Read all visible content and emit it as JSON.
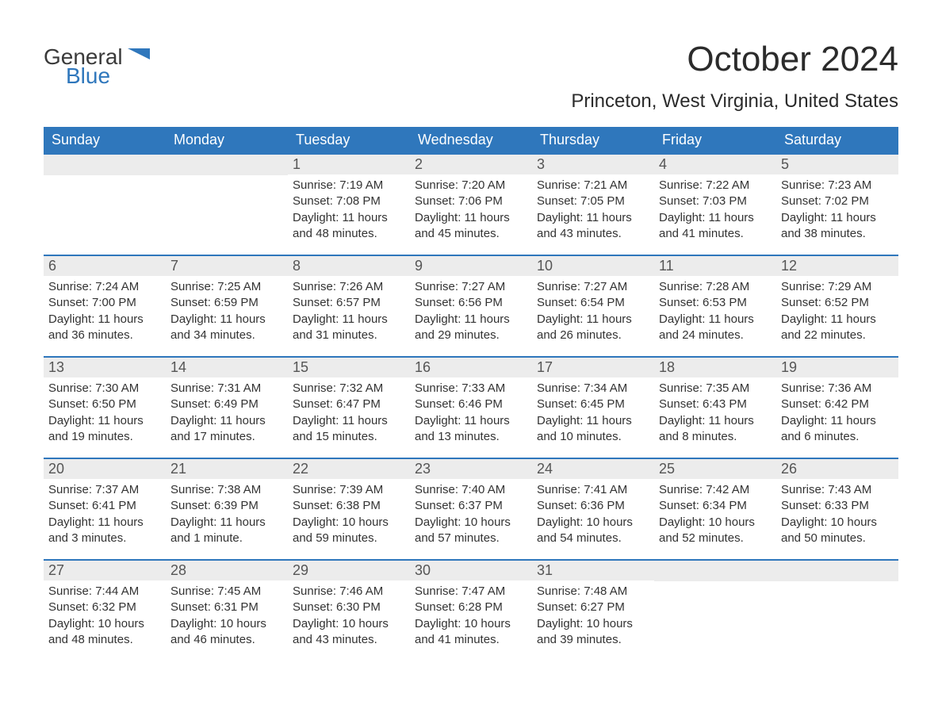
{
  "logo": {
    "word1": "General",
    "word2": "Blue",
    "accent_color": "#2f77bc"
  },
  "title": "October 2024",
  "location": "Princeton, West Virginia, United States",
  "colors": {
    "header_bg": "#2f77bc",
    "header_text": "#ffffff",
    "daynum_bg": "#ececec",
    "row_border": "#2f77bc",
    "body_text": "#333333",
    "page_bg": "#ffffff"
  },
  "weekdays": [
    "Sunday",
    "Monday",
    "Tuesday",
    "Wednesday",
    "Thursday",
    "Friday",
    "Saturday"
  ],
  "first_weekday_index": 2,
  "days": [
    {
      "n": 1,
      "sunrise": "7:19 AM",
      "sunset": "7:08 PM",
      "daylight": "11 hours and 48 minutes."
    },
    {
      "n": 2,
      "sunrise": "7:20 AM",
      "sunset": "7:06 PM",
      "daylight": "11 hours and 45 minutes."
    },
    {
      "n": 3,
      "sunrise": "7:21 AM",
      "sunset": "7:05 PM",
      "daylight": "11 hours and 43 minutes."
    },
    {
      "n": 4,
      "sunrise": "7:22 AM",
      "sunset": "7:03 PM",
      "daylight": "11 hours and 41 minutes."
    },
    {
      "n": 5,
      "sunrise": "7:23 AM",
      "sunset": "7:02 PM",
      "daylight": "11 hours and 38 minutes."
    },
    {
      "n": 6,
      "sunrise": "7:24 AM",
      "sunset": "7:00 PM",
      "daylight": "11 hours and 36 minutes."
    },
    {
      "n": 7,
      "sunrise": "7:25 AM",
      "sunset": "6:59 PM",
      "daylight": "11 hours and 34 minutes."
    },
    {
      "n": 8,
      "sunrise": "7:26 AM",
      "sunset": "6:57 PM",
      "daylight": "11 hours and 31 minutes."
    },
    {
      "n": 9,
      "sunrise": "7:27 AM",
      "sunset": "6:56 PM",
      "daylight": "11 hours and 29 minutes."
    },
    {
      "n": 10,
      "sunrise": "7:27 AM",
      "sunset": "6:54 PM",
      "daylight": "11 hours and 26 minutes."
    },
    {
      "n": 11,
      "sunrise": "7:28 AM",
      "sunset": "6:53 PM",
      "daylight": "11 hours and 24 minutes."
    },
    {
      "n": 12,
      "sunrise": "7:29 AM",
      "sunset": "6:52 PM",
      "daylight": "11 hours and 22 minutes."
    },
    {
      "n": 13,
      "sunrise": "7:30 AM",
      "sunset": "6:50 PM",
      "daylight": "11 hours and 19 minutes."
    },
    {
      "n": 14,
      "sunrise": "7:31 AM",
      "sunset": "6:49 PM",
      "daylight": "11 hours and 17 minutes."
    },
    {
      "n": 15,
      "sunrise": "7:32 AM",
      "sunset": "6:47 PM",
      "daylight": "11 hours and 15 minutes."
    },
    {
      "n": 16,
      "sunrise": "7:33 AM",
      "sunset": "6:46 PM",
      "daylight": "11 hours and 13 minutes."
    },
    {
      "n": 17,
      "sunrise": "7:34 AM",
      "sunset": "6:45 PM",
      "daylight": "11 hours and 10 minutes."
    },
    {
      "n": 18,
      "sunrise": "7:35 AM",
      "sunset": "6:43 PM",
      "daylight": "11 hours and 8 minutes."
    },
    {
      "n": 19,
      "sunrise": "7:36 AM",
      "sunset": "6:42 PM",
      "daylight": "11 hours and 6 minutes."
    },
    {
      "n": 20,
      "sunrise": "7:37 AM",
      "sunset": "6:41 PM",
      "daylight": "11 hours and 3 minutes."
    },
    {
      "n": 21,
      "sunrise": "7:38 AM",
      "sunset": "6:39 PM",
      "daylight": "11 hours and 1 minute."
    },
    {
      "n": 22,
      "sunrise": "7:39 AM",
      "sunset": "6:38 PM",
      "daylight": "10 hours and 59 minutes."
    },
    {
      "n": 23,
      "sunrise": "7:40 AM",
      "sunset": "6:37 PM",
      "daylight": "10 hours and 57 minutes."
    },
    {
      "n": 24,
      "sunrise": "7:41 AM",
      "sunset": "6:36 PM",
      "daylight": "10 hours and 54 minutes."
    },
    {
      "n": 25,
      "sunrise": "7:42 AM",
      "sunset": "6:34 PM",
      "daylight": "10 hours and 52 minutes."
    },
    {
      "n": 26,
      "sunrise": "7:43 AM",
      "sunset": "6:33 PM",
      "daylight": "10 hours and 50 minutes."
    },
    {
      "n": 27,
      "sunrise": "7:44 AM",
      "sunset": "6:32 PM",
      "daylight": "10 hours and 48 minutes."
    },
    {
      "n": 28,
      "sunrise": "7:45 AM",
      "sunset": "6:31 PM",
      "daylight": "10 hours and 46 minutes."
    },
    {
      "n": 29,
      "sunrise": "7:46 AM",
      "sunset": "6:30 PM",
      "daylight": "10 hours and 43 minutes."
    },
    {
      "n": 30,
      "sunrise": "7:47 AM",
      "sunset": "6:28 PM",
      "daylight": "10 hours and 41 minutes."
    },
    {
      "n": 31,
      "sunrise": "7:48 AM",
      "sunset": "6:27 PM",
      "daylight": "10 hours and 39 minutes."
    }
  ],
  "labels": {
    "sunrise": "Sunrise:",
    "sunset": "Sunset:",
    "daylight": "Daylight:"
  }
}
